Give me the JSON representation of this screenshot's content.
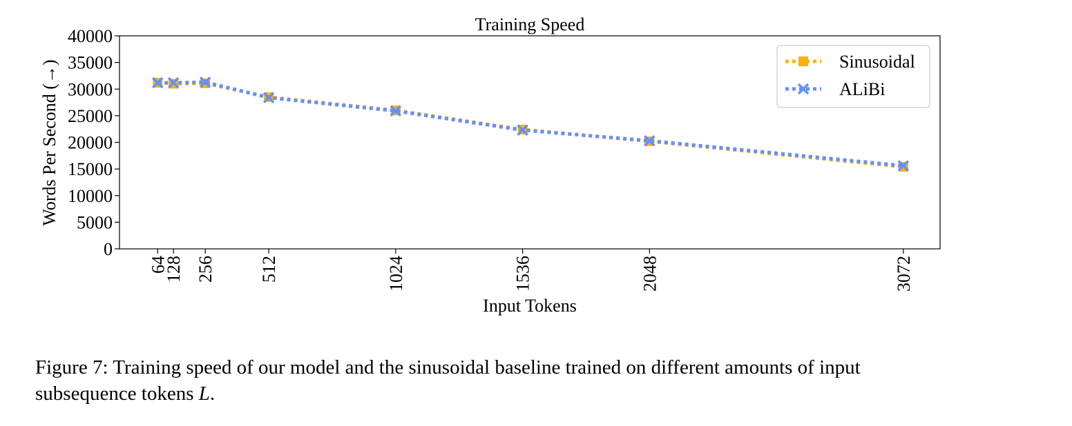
{
  "chart_data": {
    "type": "line",
    "title": "Training Speed",
    "xlabel": "Input Tokens",
    "ylabel": "Words Per Second (→)",
    "x": [
      64,
      128,
      256,
      512,
      1024,
      1536,
      2048,
      3072
    ],
    "x_tick_labels": [
      "64",
      "128",
      "256",
      "512",
      "1024",
      "1536",
      "2048",
      "3072"
    ],
    "xlim": [
      -90,
      3220
    ],
    "ylim": [
      0,
      40000
    ],
    "y_ticks": [
      0,
      5000,
      10000,
      15000,
      20000,
      25000,
      30000,
      35000,
      40000
    ],
    "y_tick_labels": [
      "0",
      "5000",
      "10000",
      "15000",
      "20000",
      "25000",
      "30000",
      "35000",
      "40000"
    ],
    "grid": false,
    "legend_position": "top-right",
    "series": [
      {
        "name": "Sinusoidal",
        "marker": "square",
        "linestyle": "dotted",
        "color": "#FFB000",
        "values": [
          31200,
          31000,
          31100,
          28500,
          26000,
          22400,
          20200,
          15400
        ]
      },
      {
        "name": "ALiBi",
        "marker": "x",
        "linestyle": "dotted",
        "color": "#648FFF",
        "values": [
          31200,
          31200,
          31300,
          28400,
          25900,
          22300,
          20300,
          15600
        ]
      }
    ]
  },
  "caption": {
    "prefix": "Figure 7: Training speed of our model and the sinusoidal baseline trained on different amounts of input subsequence tokens ",
    "math": "L",
    "suffix": "."
  }
}
